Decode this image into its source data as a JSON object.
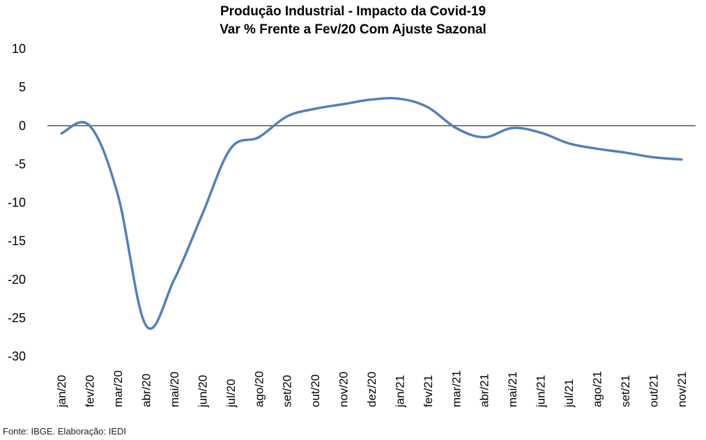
{
  "chart_data": {
    "type": "line",
    "title": "Produção Industrial - Impacto da Covid-19",
    "subtitle": "Var % Frente a Fev/20 Com Ajuste Sazonal",
    "xlabel": "",
    "ylabel": "",
    "ylim": [
      -30,
      10
    ],
    "yticks": [
      10,
      5,
      0,
      -5,
      -10,
      -15,
      -20,
      -25,
      -30
    ],
    "categories": [
      "jan/20",
      "fev/20",
      "mar/20",
      "abr/20",
      "mai/20",
      "jun/20",
      "jul/20",
      "ago/20",
      "set/20",
      "out/20",
      "nov/20",
      "dez/20",
      "jan/21",
      "fev/21",
      "mar/21",
      "abr/21",
      "mai/21",
      "jun/21",
      "jul/21",
      "ago/21",
      "set/21",
      "out/21",
      "nov/21"
    ],
    "series": [
      {
        "values": [
          -1.0,
          0.0,
          -9.0,
          -26.0,
          -20.0,
          -11.5,
          -3.0,
          -1.5,
          1.2,
          2.2,
          2.8,
          3.4,
          3.5,
          2.4,
          -0.3,
          -1.5,
          -0.3,
          -0.9,
          -2.3,
          -3.0,
          -3.5,
          -4.1,
          -4.4
        ],
        "color": "#4f81bd"
      }
    ],
    "grid": false,
    "legend": "none",
    "zero_line_color": "#000000"
  },
  "source": "Fonte: IBGE. Elaboração: IEDI"
}
